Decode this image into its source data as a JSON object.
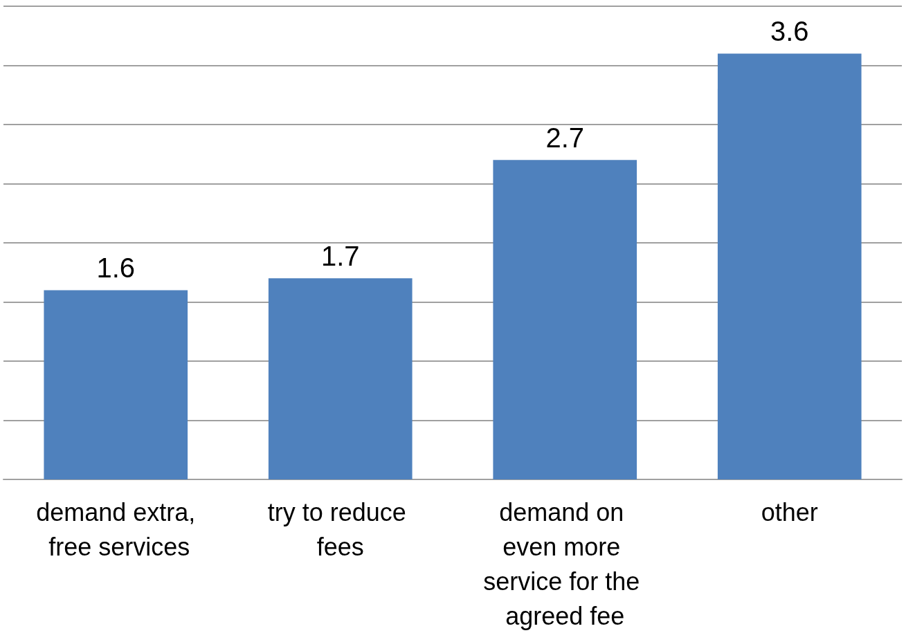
{
  "chart_data": {
    "type": "bar",
    "categories": [
      "demand extra, free services",
      "try to reduce fees",
      "demand on even more service for the agreed fee",
      "other"
    ],
    "values": [
      1.6,
      1.7,
      2.7,
      3.6
    ],
    "color": "#4f81bd",
    "ylim": [
      0,
      4
    ],
    "yticks": [
      {
        "value": 0,
        "label": null
      },
      {
        "value": 0.5,
        "label": null
      },
      {
        "value": 1,
        "label": null
      },
      {
        "value": 1.5,
        "label": null
      },
      {
        "value": 2,
        "label": null
      },
      {
        "value": 2.5,
        "label": null
      },
      {
        "value": 3,
        "label": null
      },
      {
        "value": 3.5,
        "label": null
      },
      {
        "value": 4,
        "label": null
      }
    ],
    "tick_labels": "x",
    "grid": "y",
    "data_labels": true
  }
}
